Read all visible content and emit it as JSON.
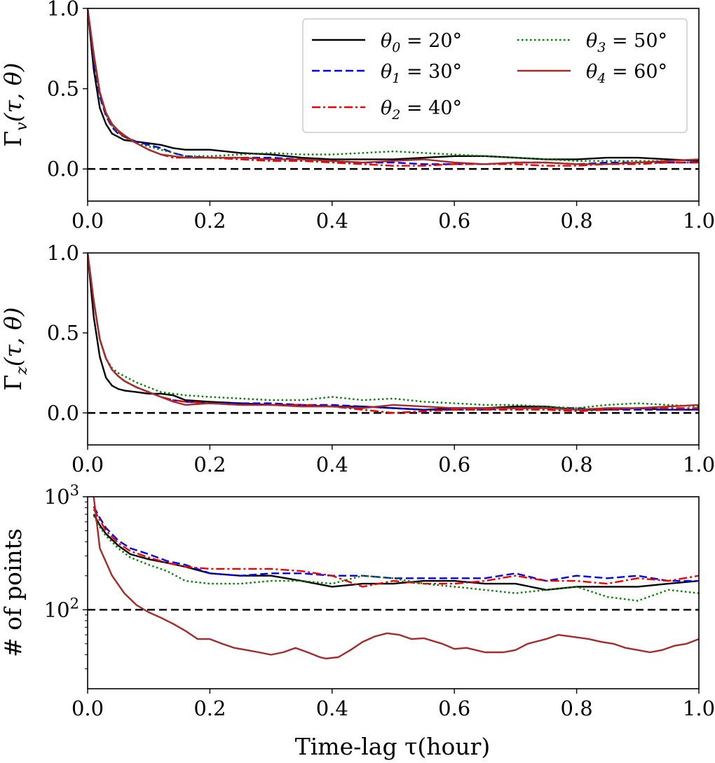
{
  "figure": {
    "xlabel": "Time-lag τ(hour)",
    "reference_line_color": "#000000"
  },
  "legend": {
    "placement": "top-right of first panel",
    "columns": 2,
    "entries": [
      {
        "label_main": "θ",
        "label_sub": "0",
        "label_rest": " = 20°",
        "color": "#000000",
        "style": "solid"
      },
      {
        "label_main": "θ",
        "label_sub": "1",
        "label_rest": " = 30°",
        "color": "#0000ee",
        "style": "dashed"
      },
      {
        "label_main": "θ",
        "label_sub": "2",
        "label_rest": " = 40°",
        "color": "#ee0000",
        "style": "dashdot"
      },
      {
        "label_main": "θ",
        "label_sub": "3",
        "label_rest": " = 50°",
        "color": "#008000",
        "style": "dotted"
      },
      {
        "label_main": "θ",
        "label_sub": "4",
        "label_rest": " = 60°",
        "color": "#a52a2a",
        "style": "solid"
      }
    ]
  },
  "chart_data": [
    {
      "type": "line",
      "ylabel": "Γv(τ, θ)",
      "ylabel_main": "Γ",
      "ylabel_sub": "v",
      "ylabel_rest": "(τ, θ)",
      "xlim": [
        0.0,
        1.0
      ],
      "ylim": [
        -0.2,
        1.0
      ],
      "xticks": [
        "0.0",
        "0.2",
        "0.4",
        "0.6",
        "0.8",
        "1.0"
      ],
      "yticks": [
        {
          "value": 0.0,
          "label": "0.0"
        },
        {
          "value": 0.5,
          "label": "0.5"
        },
        {
          "value": 1.0,
          "label": "1.0"
        }
      ],
      "reference_line": 0.0,
      "series": [
        {
          "name": "θ0 = 20°",
          "x": [
            0.0,
            0.01,
            0.02,
            0.03,
            0.04,
            0.05,
            0.06,
            0.08,
            0.1,
            0.12,
            0.14,
            0.16,
            0.2,
            0.25,
            0.3,
            0.35,
            0.4,
            0.45,
            0.5,
            0.55,
            0.6,
            0.65,
            0.7,
            0.75,
            0.8,
            0.85,
            0.9,
            0.95,
            1.0
          ],
          "y": [
            1.0,
            0.62,
            0.38,
            0.28,
            0.22,
            0.2,
            0.18,
            0.17,
            0.16,
            0.15,
            0.13,
            0.12,
            0.12,
            0.1,
            0.09,
            0.07,
            0.06,
            0.06,
            0.06,
            0.07,
            0.08,
            0.08,
            0.07,
            0.06,
            0.06,
            0.07,
            0.07,
            0.06,
            0.05
          ]
        },
        {
          "name": "θ1 = 30°",
          "x": [
            0.0,
            0.01,
            0.02,
            0.03,
            0.04,
            0.05,
            0.06,
            0.08,
            0.1,
            0.12,
            0.14,
            0.16,
            0.2,
            0.25,
            0.3,
            0.35,
            0.4,
            0.45,
            0.5,
            0.55,
            0.6,
            0.65,
            0.7,
            0.75,
            0.8,
            0.85,
            0.9,
            0.95,
            1.0
          ],
          "y": [
            1.0,
            0.68,
            0.45,
            0.33,
            0.26,
            0.22,
            0.2,
            0.17,
            0.15,
            0.13,
            0.1,
            0.08,
            0.07,
            0.07,
            0.07,
            0.06,
            0.05,
            0.04,
            0.04,
            0.03,
            0.03,
            0.03,
            0.04,
            0.04,
            0.03,
            0.04,
            0.04,
            0.04,
            0.04
          ]
        },
        {
          "name": "θ2 = 40°",
          "x": [
            0.0,
            0.01,
            0.02,
            0.03,
            0.04,
            0.05,
            0.06,
            0.08,
            0.1,
            0.12,
            0.14,
            0.16,
            0.2,
            0.25,
            0.3,
            0.35,
            0.4,
            0.45,
            0.5,
            0.55,
            0.6,
            0.65,
            0.7,
            0.75,
            0.8,
            0.85,
            0.9,
            0.95,
            1.0
          ],
          "y": [
            1.0,
            0.7,
            0.47,
            0.34,
            0.27,
            0.23,
            0.2,
            0.16,
            0.12,
            0.09,
            0.07,
            0.07,
            0.07,
            0.06,
            0.05,
            0.05,
            0.04,
            0.03,
            0.02,
            0.02,
            0.03,
            0.03,
            0.03,
            0.02,
            0.02,
            0.03,
            0.03,
            0.04,
            0.04
          ]
        },
        {
          "name": "θ3 = 50°",
          "x": [
            0.0,
            0.01,
            0.02,
            0.03,
            0.04,
            0.05,
            0.06,
            0.08,
            0.1,
            0.12,
            0.14,
            0.16,
            0.2,
            0.25,
            0.3,
            0.35,
            0.4,
            0.45,
            0.5,
            0.55,
            0.6,
            0.65,
            0.7,
            0.75,
            0.8,
            0.85,
            0.9,
            0.95,
            1.0
          ],
          "y": [
            1.0,
            0.7,
            0.47,
            0.34,
            0.27,
            0.23,
            0.2,
            0.16,
            0.14,
            0.12,
            0.1,
            0.08,
            0.08,
            0.09,
            0.1,
            0.09,
            0.09,
            0.1,
            0.11,
            0.1,
            0.09,
            0.08,
            0.07,
            0.06,
            0.05,
            0.05,
            0.05,
            0.05,
            0.06
          ]
        },
        {
          "name": "θ4 = 60°",
          "x": [
            0.0,
            0.01,
            0.02,
            0.03,
            0.04,
            0.05,
            0.06,
            0.08,
            0.1,
            0.12,
            0.14,
            0.16,
            0.2,
            0.25,
            0.3,
            0.35,
            0.4,
            0.45,
            0.5,
            0.55,
            0.6,
            0.65,
            0.7,
            0.75,
            0.8,
            0.85,
            0.9,
            0.95,
            1.0
          ],
          "y": [
            1.0,
            0.72,
            0.48,
            0.35,
            0.28,
            0.24,
            0.21,
            0.16,
            0.12,
            0.09,
            0.08,
            0.07,
            0.07,
            0.07,
            0.06,
            0.06,
            0.05,
            0.04,
            0.05,
            0.06,
            0.04,
            0.03,
            0.04,
            0.04,
            0.03,
            0.03,
            0.04,
            0.05,
            0.06
          ]
        }
      ]
    },
    {
      "type": "line",
      "ylabel": "Γz(τ, θ)",
      "ylabel_main": "Γ",
      "ylabel_sub": "z",
      "ylabel_rest": "(τ, θ)",
      "xlim": [
        0.0,
        1.0
      ],
      "ylim": [
        -0.2,
        1.0
      ],
      "xticks": [
        "0.0",
        "0.2",
        "0.4",
        "0.6",
        "0.8",
        "1.0"
      ],
      "yticks": [
        {
          "value": 0.0,
          "label": "0.0"
        },
        {
          "value": 0.5,
          "label": "0.5"
        },
        {
          "value": 1.0,
          "label": "1.0"
        }
      ],
      "reference_line": 0.0,
      "series": [
        {
          "name": "θ0 = 20°",
          "x": [
            0.0,
            0.01,
            0.02,
            0.03,
            0.04,
            0.05,
            0.06,
            0.08,
            0.1,
            0.12,
            0.14,
            0.16,
            0.2,
            0.25,
            0.3,
            0.35,
            0.4,
            0.45,
            0.5,
            0.55,
            0.6,
            0.65,
            0.7,
            0.75,
            0.8,
            0.85,
            0.9,
            0.95,
            1.0
          ],
          "y": [
            1.0,
            0.6,
            0.35,
            0.22,
            0.17,
            0.15,
            0.14,
            0.13,
            0.12,
            0.12,
            0.11,
            0.08,
            0.07,
            0.06,
            0.05,
            0.05,
            0.04,
            0.04,
            0.03,
            0.02,
            0.03,
            0.03,
            0.04,
            0.04,
            0.02,
            0.02,
            0.03,
            0.02,
            0.02
          ]
        },
        {
          "name": "θ1 = 30°",
          "x": [
            0.0,
            0.01,
            0.02,
            0.03,
            0.04,
            0.05,
            0.06,
            0.08,
            0.1,
            0.12,
            0.14,
            0.16,
            0.2,
            0.25,
            0.3,
            0.35,
            0.4,
            0.45,
            0.5,
            0.55,
            0.6,
            0.65,
            0.7,
            0.75,
            0.8,
            0.85,
            0.9,
            0.95,
            1.0
          ],
          "y": [
            1.0,
            0.7,
            0.46,
            0.34,
            0.27,
            0.23,
            0.2,
            0.16,
            0.13,
            0.1,
            0.08,
            0.07,
            0.06,
            0.06,
            0.06,
            0.05,
            0.05,
            0.04,
            0.03,
            0.02,
            0.02,
            0.02,
            0.03,
            0.03,
            0.03,
            0.02,
            0.02,
            0.02,
            0.02
          ]
        },
        {
          "name": "θ2 = 40°",
          "x": [
            0.0,
            0.01,
            0.02,
            0.03,
            0.04,
            0.05,
            0.06,
            0.08,
            0.1,
            0.12,
            0.14,
            0.16,
            0.2,
            0.25,
            0.3,
            0.35,
            0.4,
            0.45,
            0.5,
            0.55,
            0.6,
            0.65,
            0.7,
            0.75,
            0.8,
            0.85,
            0.9,
            0.95,
            1.0
          ],
          "y": [
            1.0,
            0.7,
            0.46,
            0.34,
            0.27,
            0.23,
            0.2,
            0.16,
            0.13,
            0.1,
            0.08,
            0.07,
            0.06,
            0.05,
            0.05,
            0.05,
            0.04,
            0.02,
            0.0,
            0.01,
            0.02,
            0.02,
            0.02,
            0.02,
            0.01,
            0.02,
            0.03,
            0.03,
            0.03
          ]
        },
        {
          "name": "θ3 = 50°",
          "x": [
            0.0,
            0.01,
            0.02,
            0.03,
            0.04,
            0.05,
            0.06,
            0.08,
            0.1,
            0.12,
            0.14,
            0.16,
            0.2,
            0.25,
            0.3,
            0.35,
            0.4,
            0.45,
            0.5,
            0.55,
            0.6,
            0.65,
            0.7,
            0.75,
            0.8,
            0.85,
            0.9,
            0.95,
            1.0
          ],
          "y": [
            1.0,
            0.7,
            0.46,
            0.34,
            0.28,
            0.25,
            0.23,
            0.19,
            0.16,
            0.13,
            0.12,
            0.11,
            0.1,
            0.09,
            0.08,
            0.08,
            0.1,
            0.08,
            0.09,
            0.07,
            0.06,
            0.05,
            0.05,
            0.04,
            0.03,
            0.05,
            0.06,
            0.05,
            0.04
          ]
        },
        {
          "name": "θ4 = 60°",
          "x": [
            0.0,
            0.01,
            0.02,
            0.03,
            0.04,
            0.05,
            0.06,
            0.08,
            0.1,
            0.12,
            0.14,
            0.16,
            0.2,
            0.25,
            0.3,
            0.35,
            0.4,
            0.45,
            0.5,
            0.55,
            0.6,
            0.65,
            0.7,
            0.75,
            0.8,
            0.85,
            0.9,
            0.95,
            1.0
          ],
          "y": [
            1.0,
            0.7,
            0.46,
            0.34,
            0.27,
            0.23,
            0.2,
            0.16,
            0.13,
            0.1,
            0.07,
            0.05,
            0.06,
            0.05,
            0.05,
            0.04,
            0.04,
            0.03,
            0.05,
            0.04,
            0.03,
            0.03,
            0.03,
            0.03,
            0.02,
            0.03,
            0.03,
            0.04,
            0.05
          ]
        }
      ]
    },
    {
      "type": "line",
      "ylabel": "# of points",
      "yscale": "log",
      "xlim": [
        0.0,
        1.0
      ],
      "ylim": [
        20,
        1000
      ],
      "xticks": [
        "0.0",
        "0.2",
        "0.4",
        "0.6",
        "0.8",
        "1.0"
      ],
      "yticks": [
        {
          "value": 100,
          "base": "10",
          "exp": "2"
        },
        {
          "value": 1000,
          "base": "10",
          "exp": "3"
        }
      ],
      "reference_line": 100,
      "series": [
        {
          "name": "θ0 = 20°",
          "x": [
            0.01,
            0.02,
            0.03,
            0.05,
            0.07,
            0.1,
            0.13,
            0.16,
            0.2,
            0.25,
            0.3,
            0.35,
            0.4,
            0.45,
            0.5,
            0.55,
            0.6,
            0.65,
            0.7,
            0.75,
            0.8,
            0.85,
            0.9,
            0.95,
            1.0
          ],
          "y": [
            700,
            560,
            470,
            370,
            310,
            280,
            260,
            240,
            210,
            200,
            200,
            180,
            160,
            170,
            170,
            180,
            180,
            170,
            170,
            150,
            160,
            160,
            160,
            170,
            180
          ]
        },
        {
          "name": "θ1 = 30°",
          "x": [
            0.01,
            0.02,
            0.03,
            0.05,
            0.07,
            0.1,
            0.13,
            0.16,
            0.2,
            0.25,
            0.3,
            0.35,
            0.4,
            0.45,
            0.5,
            0.55,
            0.6,
            0.65,
            0.7,
            0.75,
            0.8,
            0.85,
            0.9,
            0.95,
            1.0
          ],
          "y": [
            820,
            650,
            530,
            410,
            350,
            310,
            270,
            250,
            210,
            200,
            210,
            210,
            200,
            200,
            190,
            190,
            190,
            190,
            210,
            180,
            200,
            190,
            200,
            180,
            180
          ]
        },
        {
          "name": "θ2 = 40°",
          "x": [
            0.01,
            0.02,
            0.03,
            0.05,
            0.07,
            0.1,
            0.13,
            0.16,
            0.2,
            0.25,
            0.3,
            0.35,
            0.4,
            0.45,
            0.5,
            0.55,
            0.6,
            0.65,
            0.7,
            0.75,
            0.8,
            0.85,
            0.9,
            0.95,
            1.0
          ],
          "y": [
            780,
            620,
            500,
            390,
            330,
            290,
            260,
            240,
            230,
            230,
            230,
            220,
            200,
            160,
            180,
            170,
            170,
            180,
            200,
            180,
            180,
            170,
            190,
            180,
            200
          ]
        },
        {
          "name": "θ3 = 50°",
          "x": [
            0.01,
            0.02,
            0.03,
            0.05,
            0.07,
            0.1,
            0.13,
            0.16,
            0.2,
            0.25,
            0.3,
            0.35,
            0.4,
            0.45,
            0.5,
            0.55,
            0.6,
            0.65,
            0.7,
            0.75,
            0.8,
            0.85,
            0.9,
            0.95,
            1.0
          ],
          "y": [
            680,
            540,
            450,
            350,
            290,
            250,
            220,
            180,
            170,
            170,
            180,
            180,
            170,
            200,
            190,
            170,
            160,
            150,
            140,
            150,
            160,
            130,
            120,
            150,
            140
          ]
        },
        {
          "name": "θ4 = 60°",
          "x": [
            0.01,
            0.02,
            0.04,
            0.06,
            0.08,
            0.1,
            0.12,
            0.14,
            0.16,
            0.18,
            0.2,
            0.22,
            0.24,
            0.26,
            0.28,
            0.3,
            0.32,
            0.34,
            0.36,
            0.38,
            0.39,
            0.41,
            0.43,
            0.45,
            0.47,
            0.49,
            0.51,
            0.53,
            0.55,
            0.58,
            0.6,
            0.62,
            0.65,
            0.68,
            0.7,
            0.72,
            0.75,
            0.77,
            0.79,
            0.82,
            0.84,
            0.86,
            0.88,
            0.9,
            0.92,
            0.94,
            0.96,
            0.98,
            1.0
          ],
          "y": [
            1000,
            350,
            200,
            140,
            110,
            95,
            85,
            75,
            65,
            55,
            55,
            50,
            46,
            44,
            42,
            40,
            42,
            46,
            42,
            38,
            37,
            38,
            44,
            52,
            58,
            62,
            60,
            55,
            56,
            50,
            45,
            46,
            42,
            42,
            44,
            50,
            55,
            60,
            58,
            55,
            52,
            50,
            46,
            44,
            42,
            44,
            48,
            50,
            55
          ]
        }
      ]
    }
  ]
}
